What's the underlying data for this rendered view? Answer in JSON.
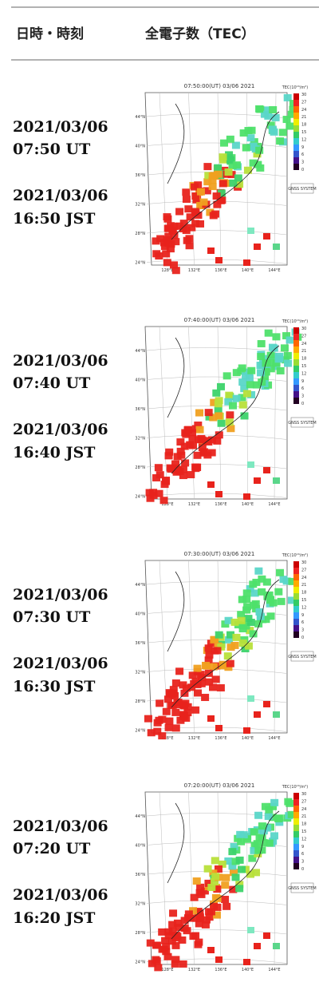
{
  "header": {
    "columns": [
      "日時・時刻",
      "全電子数（TEC）"
    ]
  },
  "map_labels": {
    "colorbar_title": "TEC(10¹⁶/m²)",
    "colorbar_ticks": [
      30,
      27,
      24,
      21,
      18,
      15,
      12,
      9,
      6,
      3,
      0
    ],
    "latitudes": [
      "44°N",
      "40°N",
      "36°N",
      "32°N",
      "28°N",
      "24°N"
    ],
    "longitudes": [
      "128°E",
      "132°E",
      "136°E",
      "140°E",
      "144°E"
    ],
    "system": "GNSS SYSTEM"
  },
  "rows": [
    {
      "utc_date": "2021/03/06",
      "utc_time": "07:50 UT",
      "jst_date": "2021/03/06",
      "jst_time": "16:50 JST",
      "map_title": "07:50:00(UT) 03/06 2021"
    },
    {
      "utc_date": "2021/03/06",
      "utc_time": "07:40 UT",
      "jst_date": "2021/03/06",
      "jst_time": "16:40 JST",
      "map_title": "07:40:00(UT) 03/06 2021"
    },
    {
      "utc_date": "2021/03/06",
      "utc_time": "07:30 UT",
      "jst_date": "2021/03/06",
      "jst_time": "16:30 JST",
      "map_title": "07:30:00(UT) 03/06 2021"
    },
    {
      "utc_date": "2021/03/06",
      "utc_time": "07:20 UT",
      "jst_date": "2021/03/06",
      "jst_time": "16:20 JST",
      "map_title": "07:20:00(UT) 03/06 2021"
    }
  ]
}
